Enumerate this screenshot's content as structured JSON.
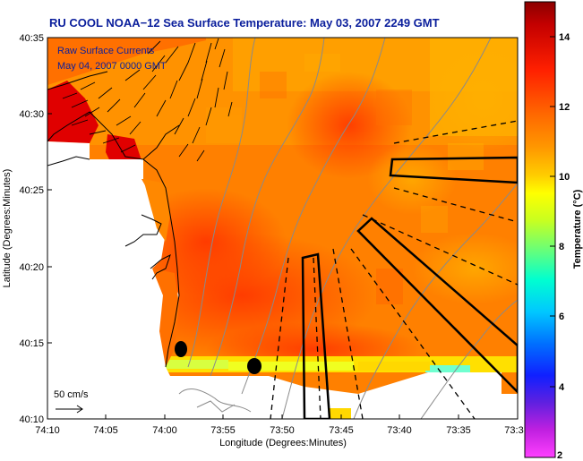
{
  "title": "RU COOL  NOAA−12  Sea Surface Temperature:  May 03, 2007 2249 GMT",
  "legend": {
    "line1": "Raw Surface Currents",
    "line2": "May 04, 2007 0000 GMT"
  },
  "scale_label": "50 cm/s",
  "chart_data": {
    "type": "heatmap",
    "xlabel": "Longitude (Degrees:Minutes)",
    "ylabel": "Latitude (Degrees:Minutes)",
    "x_ticks": [
      "74:10",
      "74:05",
      "74:00",
      "73:55",
      "73:50",
      "73:45",
      "73:40",
      "73:35",
      "73:3"
    ],
    "y_ticks": [
      "40:35",
      "40:30",
      "40:25",
      "40:20",
      "40:15",
      "40:10"
    ],
    "colorbar": {
      "label": "Temperature (°C)",
      "ticks": [
        "14",
        "12",
        "10",
        "8",
        "6",
        "4",
        "2"
      ],
      "range": [
        2,
        15
      ]
    }
  },
  "colors": {
    "title": "#0a1e9c",
    "land": "#ffffff",
    "warm": "#ff5a00",
    "cool": "#ffd000"
  }
}
